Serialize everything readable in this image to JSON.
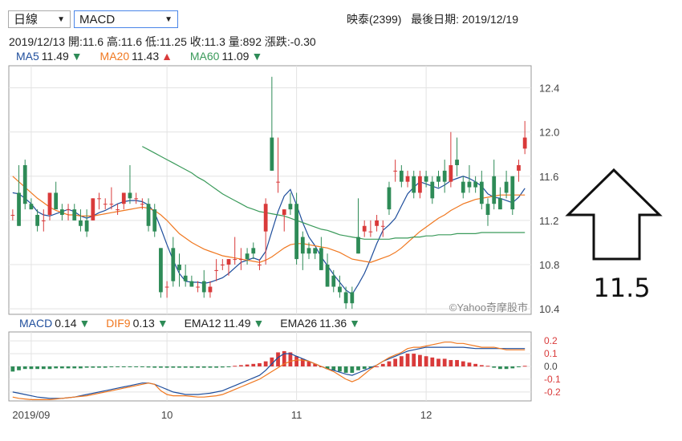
{
  "toolbar": {
    "period_select": "日線",
    "indicator_select": "MACD"
  },
  "header": {
    "stock": "映泰(2399)",
    "last_date_label": "最後日期:",
    "last_date": "2019/12/19"
  },
  "quote": {
    "date": "2019/12/13",
    "open_label": "開:",
    "open": "11.6",
    "high_label": "高:",
    "high": "11.6",
    "low_label": "低:",
    "low": "11.25",
    "close_label": "收:",
    "close": "11.3",
    "vol_label": "量:",
    "vol": "892",
    "chg_label": "漲跌:",
    "chg": "-0.30"
  },
  "ma_legend": [
    {
      "name": "MA5",
      "value": "11.49",
      "dir": "▼",
      "color": "#1f4e9c",
      "dir_color": "#2e8b57"
    },
    {
      "name": "MA20",
      "value": "11.43",
      "dir": "▲",
      "color": "#f07820",
      "dir_color": "#d93a3a"
    },
    {
      "name": "MA60",
      "value": "11.09",
      "dir": "▼",
      "color": "#3a9a5a",
      "dir_color": "#2e8b57"
    }
  ],
  "macd_legend": [
    {
      "name": "MACD",
      "value": "0.14",
      "dir": "▼",
      "color": "#1f4e9c",
      "dir_color": "#2e8b57"
    },
    {
      "name": "DIF9",
      "value": "0.13",
      "dir": "▼",
      "color": "#f07820",
      "dir_color": "#2e8b57"
    },
    {
      "name": "EMA12",
      "value": "11.49",
      "dir": "▼",
      "color": "#222222",
      "dir_color": "#2e8b57"
    },
    {
      "name": "EMA26",
      "value": "11.36",
      "dir": "▼",
      "color": "#222222",
      "dir_color": "#2e8b57"
    }
  ],
  "watermark": "©Yahoo奇摩股市",
  "annotation": {
    "value": "11.5",
    "arrow": "up-arrow-outline"
  },
  "colors": {
    "up": "#d93a3a",
    "down": "#2e8b57",
    "ma5": "#1f4e9c",
    "ma20": "#f07820",
    "ma60": "#3a9a5a",
    "grid": "#e3e3e3"
  },
  "chart_data": [
    {
      "type": "candlestick",
      "ylim": [
        10.35,
        12.6
      ],
      "yticks": [
        "12.4",
        "12.0",
        "11.6",
        "11.2",
        "10.8",
        "10.4"
      ],
      "ytick_values": [
        12.4,
        12.0,
        11.6,
        11.2,
        10.8,
        10.4
      ],
      "xticks": [
        {
          "label": "2019/09",
          "index": 3
        },
        {
          "label": "10",
          "index": 25
        },
        {
          "label": "11",
          "index": 46
        },
        {
          "label": "12",
          "index": 67
        }
      ],
      "ohlc": [
        [
          11.25,
          11.3,
          11.2,
          11.25
        ],
        [
          11.45,
          11.7,
          11.15,
          11.15
        ],
        [
          11.7,
          11.75,
          11.3,
          11.35
        ],
        [
          11.35,
          11.4,
          11.3,
          11.3
        ],
        [
          11.25,
          11.3,
          11.1,
          11.15
        ],
        [
          11.2,
          11.3,
          11.1,
          11.2
        ],
        [
          11.25,
          11.45,
          11.2,
          11.45
        ],
        [
          11.45,
          11.55,
          11.3,
          11.3
        ],
        [
          11.3,
          11.35,
          11.2,
          11.25
        ],
        [
          11.3,
          11.35,
          11.2,
          11.3
        ],
        [
          11.3,
          11.35,
          11.2,
          11.2
        ],
        [
          11.2,
          11.3,
          11.1,
          11.15
        ],
        [
          11.2,
          11.3,
          11.05,
          11.1
        ],
        [
          11.2,
          11.4,
          11.2,
          11.4
        ],
        [
          11.4,
          11.45,
          11.3,
          11.4
        ],
        [
          11.35,
          11.4,
          11.3,
          11.35
        ],
        [
          11.35,
          11.5,
          11.3,
          11.35
        ],
        [
          11.3,
          11.35,
          11.25,
          11.3
        ],
        [
          11.35,
          11.45,
          11.3,
          11.45
        ],
        [
          11.45,
          11.7,
          11.35,
          11.4
        ],
        [
          11.4,
          11.45,
          11.35,
          11.4
        ],
        [
          11.35,
          11.4,
          11.3,
          11.35
        ],
        [
          11.35,
          11.4,
          11.1,
          11.15
        ],
        [
          11.3,
          11.35,
          11.05,
          11.1
        ],
        [
          10.95,
          10.95,
          10.5,
          10.55
        ],
        [
          10.6,
          10.65,
          10.5,
          10.6
        ],
        [
          10.95,
          11.05,
          10.6,
          10.65
        ],
        [
          10.8,
          10.9,
          10.6,
          10.75
        ],
        [
          10.7,
          10.8,
          10.6,
          10.65
        ],
        [
          10.65,
          10.7,
          10.6,
          10.6
        ],
        [
          10.6,
          10.65,
          10.55,
          10.6
        ],
        [
          10.65,
          10.75,
          10.5,
          10.55
        ],
        [
          10.55,
          10.65,
          10.5,
          10.6
        ],
        [
          10.75,
          10.85,
          10.65,
          10.75
        ],
        [
          10.8,
          10.85,
          10.75,
          10.8
        ],
        [
          10.8,
          10.85,
          10.7,
          10.85
        ],
        [
          10.85,
          11.05,
          10.8,
          10.85
        ],
        [
          10.85,
          10.95,
          10.75,
          10.85
        ],
        [
          10.9,
          10.95,
          10.8,
          10.85
        ],
        [
          10.95,
          11.0,
          10.85,
          10.9
        ],
        [
          10.8,
          10.85,
          10.75,
          10.8
        ],
        [
          11.1,
          11.4,
          10.8,
          11.35
        ],
        [
          11.95,
          12.5,
          11.65,
          11.65
        ],
        [
          11.55,
          11.95,
          11.45,
          11.55
        ],
        [
          11.25,
          11.3,
          11.1,
          11.3
        ],
        [
          11.35,
          11.45,
          11.25,
          11.3
        ],
        [
          11.35,
          11.45,
          10.8,
          10.85
        ],
        [
          11.05,
          11.1,
          10.75,
          10.9
        ],
        [
          10.95,
          11.0,
          10.85,
          10.9
        ],
        [
          10.95,
          10.95,
          10.85,
          10.9
        ],
        [
          10.95,
          11.05,
          10.75,
          10.75
        ],
        [
          10.8,
          10.9,
          10.6,
          10.6
        ],
        [
          10.7,
          10.75,
          10.55,
          10.6
        ],
        [
          10.6,
          10.7,
          10.5,
          10.55
        ],
        [
          10.55,
          10.6,
          10.4,
          10.45
        ],
        [
          10.55,
          10.6,
          10.4,
          10.45
        ],
        [
          11.05,
          11.4,
          10.9,
          10.9
        ],
        [
          11.1,
          11.2,
          11.05,
          11.15
        ],
        [
          11.1,
          11.2,
          11.05,
          11.1
        ],
        [
          11.15,
          11.25,
          11.1,
          11.2
        ],
        [
          11.15,
          11.2,
          11.05,
          11.15
        ],
        [
          11.5,
          11.55,
          11.25,
          11.3
        ],
        [
          11.65,
          11.75,
          11.55,
          11.65
        ],
        [
          11.65,
          11.7,
          11.5,
          11.55
        ],
        [
          11.55,
          11.65,
          11.5,
          11.6
        ],
        [
          11.6,
          11.65,
          11.4,
          11.45
        ],
        [
          11.45,
          11.65,
          11.4,
          11.6
        ],
        [
          11.6,
          11.65,
          11.5,
          11.55
        ],
        [
          11.55,
          11.6,
          11.35,
          11.4
        ],
        [
          11.6,
          11.65,
          11.5,
          11.55
        ],
        [
          11.65,
          11.75,
          11.45,
          11.55
        ],
        [
          11.55,
          12.0,
          11.5,
          11.7
        ],
        [
          11.75,
          11.95,
          11.6,
          11.7
        ],
        [
          11.55,
          11.6,
          11.4,
          11.45
        ],
        [
          11.55,
          11.7,
          11.45,
          11.5
        ],
        [
          11.55,
          11.6,
          11.45,
          11.5
        ],
        [
          11.55,
          11.65,
          11.3,
          11.35
        ],
        [
          11.35,
          11.4,
          11.15,
          11.25
        ],
        [
          11.6,
          11.75,
          11.3,
          11.35
        ],
        [
          11.4,
          11.5,
          11.3,
          11.3
        ],
        [
          11.55,
          11.65,
          11.4,
          11.45
        ],
        [
          11.6,
          11.6,
          11.25,
          11.3
        ],
        [
          11.65,
          11.75,
          11.55,
          11.7
        ],
        [
          11.85,
          12.1,
          11.8,
          11.95
        ]
      ],
      "series": [
        {
          "name": "MA5",
          "values": [
            11.45,
            11.44,
            11.4,
            11.35,
            11.28,
            11.25,
            11.24,
            11.26,
            11.28,
            11.3,
            11.28,
            11.24,
            11.22,
            11.24,
            11.27,
            11.29,
            11.32,
            11.35,
            11.37,
            11.38,
            11.38,
            11.37,
            11.34,
            11.27,
            11.13,
            10.98,
            10.84,
            10.72,
            10.65,
            10.64,
            10.64,
            10.63,
            10.64,
            10.66,
            10.68,
            10.72,
            10.77,
            10.82,
            10.84,
            10.86,
            10.84,
            10.92,
            11.1,
            11.28,
            11.42,
            11.48,
            11.34,
            11.18,
            11.05,
            10.97,
            10.87,
            10.79,
            10.71,
            10.64,
            10.57,
            10.53,
            10.62,
            10.72,
            10.85,
            10.99,
            11.11,
            11.16,
            11.22,
            11.33,
            11.44,
            11.5,
            11.55,
            11.53,
            11.51,
            11.49,
            11.52,
            11.56,
            11.58,
            11.6,
            11.58,
            11.55,
            11.51,
            11.44,
            11.41,
            11.4,
            11.38,
            11.36,
            11.41,
            11.49
          ]
        },
        {
          "name": "MA20",
          "values": [
            11.6,
            11.55,
            11.5,
            11.45,
            11.4,
            11.36,
            11.32,
            11.29,
            11.27,
            11.25,
            11.25,
            11.24,
            11.24,
            11.24,
            11.25,
            11.26,
            11.27,
            11.28,
            11.29,
            11.3,
            11.31,
            11.32,
            11.31,
            11.29,
            11.25,
            11.2,
            11.14,
            11.08,
            11.04,
            11.0,
            10.97,
            10.94,
            10.92,
            10.9,
            10.88,
            10.87,
            10.86,
            10.85,
            10.84,
            10.83,
            10.82,
            10.84,
            10.87,
            10.91,
            10.95,
            10.98,
            10.99,
            10.99,
            10.98,
            10.97,
            10.96,
            10.95,
            10.93,
            10.91,
            10.88,
            10.85,
            10.84,
            10.83,
            10.82,
            10.84,
            10.86,
            10.88,
            10.91,
            10.95,
            11.0,
            11.05,
            11.1,
            11.14,
            11.18,
            11.22,
            11.25,
            11.29,
            11.32,
            11.35,
            11.37,
            11.39,
            11.4,
            11.41,
            11.42,
            11.43,
            11.43,
            11.43,
            11.43,
            11.43
          ]
        },
        {
          "name": "MA60",
          "values": [
            null,
            null,
            null,
            null,
            null,
            null,
            null,
            null,
            null,
            null,
            null,
            null,
            null,
            null,
            null,
            null,
            null,
            null,
            null,
            null,
            null,
            11.87,
            11.84,
            11.81,
            11.78,
            11.75,
            11.72,
            11.69,
            11.66,
            11.63,
            11.59,
            11.56,
            11.52,
            11.48,
            11.44,
            11.41,
            11.38,
            11.35,
            11.32,
            11.3,
            11.28,
            11.27,
            11.26,
            11.25,
            11.24,
            11.22,
            11.2,
            11.18,
            11.16,
            11.14,
            11.12,
            11.11,
            11.09,
            11.07,
            11.06,
            11.05,
            11.04,
            11.03,
            11.03,
            11.03,
            11.03,
            11.03,
            11.04,
            11.04,
            11.04,
            11.05,
            11.05,
            11.06,
            11.06,
            11.07,
            11.07,
            11.07,
            11.08,
            11.08,
            11.08,
            11.08,
            11.09,
            11.09,
            11.09,
            11.09,
            11.09,
            11.09,
            11.09,
            11.09
          ]
        }
      ]
    },
    {
      "type": "bar",
      "ylim": [
        -0.27,
        0.27
      ],
      "yticks": [
        "0.2",
        "0.1",
        "0.0",
        "-0.1",
        "-0.2"
      ],
      "ytick_values": [
        0.2,
        0.1,
        0.0,
        -0.1,
        -0.2
      ],
      "series": [
        {
          "name": "OSC",
          "values": [
            -0.04,
            -0.03,
            -0.02,
            -0.02,
            -0.02,
            -0.02,
            -0.02,
            -0.015,
            -0.015,
            -0.015,
            -0.015,
            -0.015,
            -0.01,
            -0.01,
            -0.01,
            -0.01,
            -0.005,
            -0.005,
            -0.005,
            -0.005,
            -0.005,
            -0.005,
            -0.008,
            -0.01,
            -0.01,
            -0.01,
            -0.01,
            -0.01,
            -0.01,
            -0.01,
            -0.01,
            -0.01,
            -0.01,
            -0.01,
            -0.008,
            -0.005,
            0.005,
            0.01,
            0.015,
            0.02,
            0.025,
            0.04,
            0.07,
            0.11,
            0.12,
            0.11,
            0.08,
            0.06,
            0.04,
            0.02,
            0.0,
            -0.02,
            -0.03,
            -0.04,
            -0.05,
            -0.05,
            -0.03,
            -0.02,
            -0.01,
            0.0,
            0.02,
            0.04,
            0.06,
            0.08,
            0.1,
            0.1,
            0.09,
            0.08,
            0.07,
            0.06,
            0.06,
            0.05,
            0.05,
            0.04,
            0.03,
            0.02,
            0.01,
            0.005,
            -0.01,
            -0.02,
            -0.02,
            -0.015,
            -0.005,
            0.005
          ]
        },
        {
          "name": "MACD",
          "values": [
            -0.2,
            -0.21,
            -0.22,
            -0.23,
            -0.24,
            -0.245,
            -0.25,
            -0.25,
            -0.25,
            -0.245,
            -0.24,
            -0.23,
            -0.22,
            -0.21,
            -0.2,
            -0.19,
            -0.18,
            -0.17,
            -0.16,
            -0.15,
            -0.14,
            -0.13,
            -0.13,
            -0.14,
            -0.16,
            -0.18,
            -0.2,
            -0.21,
            -0.22,
            -0.22,
            -0.22,
            -0.215,
            -0.21,
            -0.2,
            -0.19,
            -0.17,
            -0.15,
            -0.13,
            -0.11,
            -0.09,
            -0.07,
            -0.03,
            0.02,
            0.07,
            0.1,
            0.1,
            0.08,
            0.06,
            0.04,
            0.02,
            0.0,
            -0.02,
            -0.03,
            -0.045,
            -0.06,
            -0.07,
            -0.05,
            -0.03,
            -0.01,
            0.01,
            0.04,
            0.06,
            0.08,
            0.1,
            0.12,
            0.13,
            0.14,
            0.15,
            0.15,
            0.15,
            0.15,
            0.15,
            0.15,
            0.15,
            0.145,
            0.14,
            0.14,
            0.14,
            0.14,
            0.14,
            0.14,
            0.14,
            0.14,
            0.14
          ]
        },
        {
          "name": "DIF9",
          "values": [
            -0.24,
            -0.25,
            -0.255,
            -0.26,
            -0.26,
            -0.26,
            -0.26,
            -0.255,
            -0.25,
            -0.245,
            -0.24,
            -0.235,
            -0.23,
            -0.22,
            -0.21,
            -0.2,
            -0.19,
            -0.18,
            -0.17,
            -0.16,
            -0.15,
            -0.14,
            -0.13,
            -0.14,
            -0.19,
            -0.22,
            -0.23,
            -0.23,
            -0.23,
            -0.235,
            -0.24,
            -0.24,
            -0.235,
            -0.23,
            -0.22,
            -0.2,
            -0.18,
            -0.16,
            -0.14,
            -0.12,
            -0.1,
            -0.07,
            -0.04,
            -0.01,
            0.02,
            0.04,
            0.05,
            0.05,
            0.04,
            0.02,
            0.0,
            -0.02,
            -0.04,
            -0.07,
            -0.1,
            -0.12,
            -0.1,
            -0.06,
            -0.02,
            0.01,
            0.04,
            0.07,
            0.09,
            0.11,
            0.14,
            0.15,
            0.15,
            0.16,
            0.17,
            0.18,
            0.19,
            0.19,
            0.18,
            0.18,
            0.17,
            0.16,
            0.15,
            0.15,
            0.15,
            0.14,
            0.13,
            0.13,
            0.13,
            0.13
          ]
        }
      ]
    }
  ]
}
